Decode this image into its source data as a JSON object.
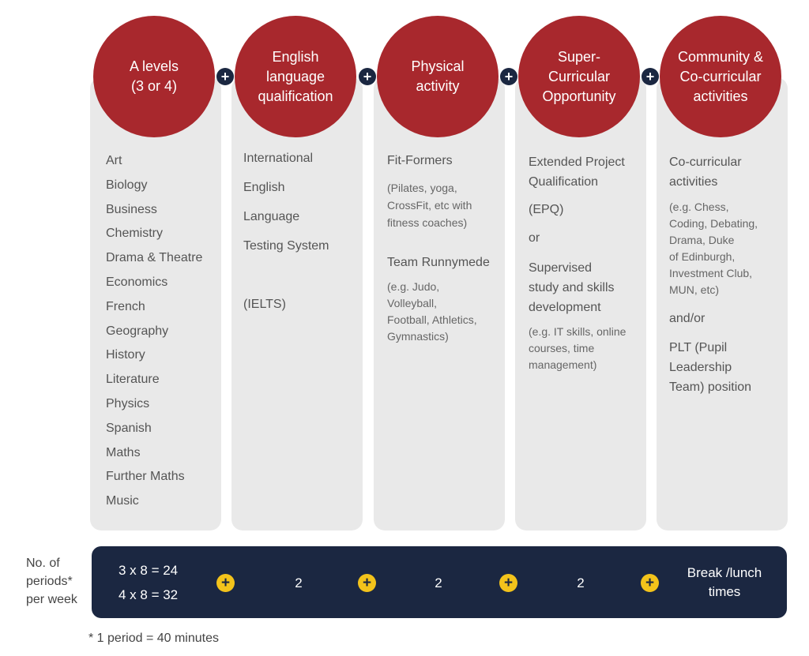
{
  "columns": [
    {
      "title": "A levels\n(3 or 4)",
      "subjects": [
        "Art",
        "Biology",
        "Business",
        "Chemistry",
        "Drama & Theatre",
        "Economics",
        "French",
        "Geography",
        "History",
        "Literature",
        "Physics",
        "Spanish",
        "Maths",
        "Further Maths",
        "Music"
      ]
    },
    {
      "title": "English\nlanguage\nqualification",
      "lines": [
        "International",
        "English",
        "Language",
        "Testing System",
        "(IELTS)"
      ]
    },
    {
      "title": "Physical\nactivity",
      "item1": "Fit-Formers",
      "item1_note": "(Pilates, yoga,\nCrossFit, etc with\nfitness coaches)",
      "item2": "Team Runnymede",
      "item2_note": "(e.g. Judo,\nVolleyball,\nFootball, Athletics,\nGymnastics)"
    },
    {
      "title": "Super-\nCurricular\nOpportunity",
      "item1": "Extended Project\nQualification",
      "item1_abbr": "(EPQ)",
      "connector": "or",
      "item2": "Supervised\nstudy and skills\ndevelopment",
      "item2_note": "(e.g. IT skills, online\ncourses, time\nmanagement)"
    },
    {
      "title": "Community &\nCo-curricular\nactivities",
      "item1": "Co-curricular\nactivities",
      "item1_note": "(e.g. Chess,\nCoding, Debating,\nDrama, Duke\nof Edinburgh,\nInvestment Club,\nMUN, etc)",
      "connector": "and/or",
      "item2": "PLT (Pupil\nLeadership\nTeam) position"
    }
  ],
  "plus_symbol": "+",
  "periods": {
    "label": "No. of\nperiods*\nper week",
    "alevels_line1": "3 x 8 = 24",
    "alevels_line2": "4 x 8 = 32",
    "english": "2",
    "physical": "2",
    "supercurricular": "2",
    "community": "Break /lunch\ntimes"
  },
  "footnote": "* 1 period = 40 minutes",
  "colors": {
    "circle": "#a8282d",
    "bar": "#1b2741",
    "plus_yellow": "#f3c31b",
    "panel": "#e9e9e9"
  }
}
